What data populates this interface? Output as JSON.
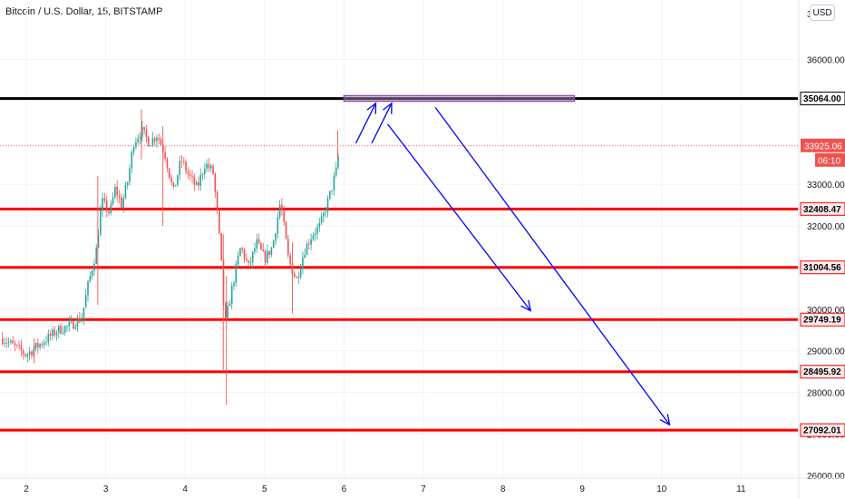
{
  "chart_data": {
    "type": "candlestick",
    "title": "Bitcoin / U.S. Dollar, 15, BITSTAMP",
    "currency": "USD",
    "y_ticks": [
      26000,
      27000,
      28000,
      29000,
      30000,
      31000,
      32000,
      33000,
      36000
    ],
    "top_partial_tick": "3",
    "x_ticks": [
      "2",
      "3",
      "4",
      "5",
      "6",
      "7",
      "8",
      "9",
      "10",
      "11"
    ],
    "ylim": [
      25600,
      37200
    ],
    "current_price": {
      "label": "33925.06",
      "value": 33925.06,
      "countdown": "06:10",
      "color": "#ef5350"
    },
    "horizontal_levels": [
      {
        "label": "35064.00",
        "value": 35064.0,
        "color": "#000000"
      },
      {
        "label": "32408.47",
        "value": 32408.47,
        "color": "#ff0000"
      },
      {
        "label": "31004.56",
        "value": 31004.56,
        "color": "#ff0000"
      },
      {
        "label": "29749.19",
        "value": 29749.19,
        "color": "#ff0000"
      },
      {
        "label": "28495.92",
        "value": 28495.92,
        "color": "#ff0000"
      },
      {
        "label": "27092.01",
        "value": 27092.01,
        "color": "#ff0000"
      }
    ],
    "price_path": [
      [
        1.7,
        29300
      ],
      [
        1.85,
        29100
      ],
      [
        2.0,
        28900
      ],
      [
        2.2,
        29200
      ],
      [
        2.4,
        29500
      ],
      [
        2.55,
        29600
      ],
      [
        2.7,
        29800
      ],
      [
        2.78,
        30600
      ],
      [
        2.88,
        31400
      ],
      [
        2.95,
        32600
      ],
      [
        3.05,
        32300
      ],
      [
        3.12,
        32900
      ],
      [
        3.2,
        32500
      ],
      [
        3.28,
        33100
      ],
      [
        3.35,
        34000
      ],
      [
        3.45,
        34300
      ],
      [
        3.55,
        34000
      ],
      [
        3.65,
        34200
      ],
      [
        3.75,
        33700
      ],
      [
        3.85,
        32800
      ],
      [
        3.95,
        33600
      ],
      [
        4.05,
        33200
      ],
      [
        4.15,
        32900
      ],
      [
        4.25,
        33500
      ],
      [
        4.35,
        33300
      ],
      [
        4.4,
        32400
      ],
      [
        4.45,
        31300
      ],
      [
        4.5,
        29600
      ],
      [
        4.6,
        30600
      ],
      [
        4.7,
        31500
      ],
      [
        4.8,
        31000
      ],
      [
        4.9,
        31600
      ],
      [
        5.0,
        31200
      ],
      [
        5.1,
        31500
      ],
      [
        5.2,
        32600
      ],
      [
        5.3,
        31200
      ],
      [
        5.4,
        30700
      ],
      [
        5.5,
        31400
      ],
      [
        5.6,
        31800
      ],
      [
        5.7,
        32000
      ],
      [
        5.8,
        32600
      ],
      [
        5.9,
        33300
      ],
      [
        5.95,
        33950
      ]
    ],
    "wicks": [
      {
        "x": 3.72,
        "low": 32000,
        "high": 34400
      },
      {
        "x": 2.9,
        "low": 30100,
        "high": 33200
      },
      {
        "x": 4.52,
        "low": 27700,
        "high": 30800
      },
      {
        "x": 4.48,
        "low": 28500,
        "high": 31800
      },
      {
        "x": 5.35,
        "low": 29900,
        "high": 31600
      },
      {
        "x": 2.1,
        "low": 28700,
        "high": 29300
      },
      {
        "x": 3.45,
        "low": 33600,
        "high": 34800
      },
      {
        "x": 5.92,
        "low": 33600,
        "high": 34300
      }
    ],
    "drawings": {
      "rectangle": {
        "x1": 6.0,
        "x2": 8.9,
        "y1": 35000,
        "y2": 35130,
        "color": "#8e44ad"
      },
      "arrows": [
        {
          "from": [
            6.15,
            33990
          ],
          "to": [
            6.4,
            34950
          ],
          "color": "#0000ff"
        },
        {
          "from": [
            6.35,
            33990
          ],
          "to": [
            6.6,
            34950
          ],
          "color": "#0000ff"
        },
        {
          "from": [
            6.55,
            34450
          ],
          "to": [
            8.35,
            29960
          ],
          "color": "#0000ff"
        },
        {
          "from": [
            7.15,
            34850
          ],
          "to": [
            10.1,
            27220
          ],
          "color": "#0000ff"
        }
      ]
    }
  }
}
